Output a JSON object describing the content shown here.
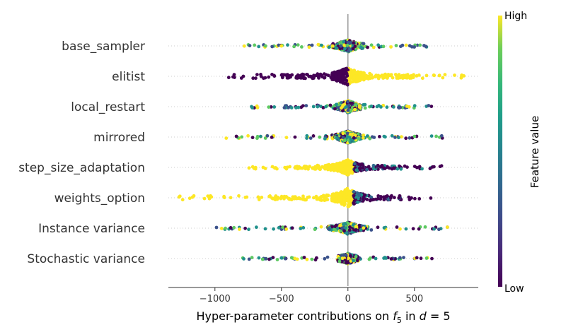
{
  "chart_data": {
    "type": "scatter",
    "subtype": "beeswarm-summary",
    "xlabel_prefix": "Hyper-parameter contributions on ",
    "xlabel_math": "f",
    "xlabel_sub": "5",
    "xlabel_mid": " in ",
    "xlabel_d": "d",
    "xlabel_eq": " = 5",
    "xlim": [
      -1350,
      980
    ],
    "xticks": [
      -1000,
      -500,
      0,
      500
    ],
    "xtick_labels": [
      "−1000",
      "−500",
      "0",
      "500"
    ],
    "features": [
      {
        "name": "base_sampler",
        "min": -780,
        "max": 650,
        "spread": 0.35,
        "low_side": "mixed",
        "dense_left": -120,
        "dense_right": 120
      },
      {
        "name": "elitist",
        "min": -950,
        "max": 880,
        "spread": 0.55,
        "low_side": "left",
        "dense_left": -500,
        "dense_right": 500
      },
      {
        "name": "local_restart",
        "min": -760,
        "max": 650,
        "spread": 0.35,
        "low_side": "mixed",
        "dense_left": -100,
        "dense_right": 100
      },
      {
        "name": "mirrored",
        "min": -920,
        "max": 720,
        "spread": 0.35,
        "low_side": "mixed",
        "dense_left": -120,
        "dense_right": 120
      },
      {
        "name": "step_size_adaptation",
        "min": -750,
        "max": 740,
        "spread": 0.45,
        "low_side": "right",
        "dense_left": -400,
        "dense_right": 400
      },
      {
        "name": "weights_option",
        "min": -1290,
        "max": 630,
        "spread": 0.55,
        "low_side": "right",
        "dense_left": -600,
        "dense_right": 400
      },
      {
        "name": "Instance variance",
        "min": -1050,
        "max": 760,
        "spread": 0.35,
        "low_side": "mixed",
        "dense_left": -150,
        "dense_right": 150
      },
      {
        "name": "Stochastic variance",
        "min": -850,
        "max": 640,
        "spread": 0.3,
        "low_side": "mixed",
        "dense_left": -80,
        "dense_right": 80
      }
    ],
    "colorbar": {
      "title": "Feature value",
      "high_label": "High",
      "low_label": "Low",
      "colormap": "viridis"
    },
    "colors": {
      "low": "#440154",
      "mid": "#21918c",
      "high": "#fde725"
    }
  }
}
